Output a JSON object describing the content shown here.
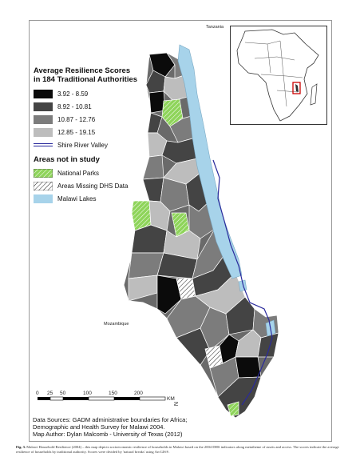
{
  "legend": {
    "title_line1": "Average Resilience Scores",
    "title_line2": "in 184 Traditional Authorities",
    "classes": [
      {
        "label": "3.92 - 8.59",
        "color": "#0b0b0b"
      },
      {
        "label": "8.92 - 10.81",
        "color": "#444444"
      },
      {
        "label": "10.87 - 12.76",
        "color": "#7c7c7c"
      },
      {
        "label": "12.85 - 19.15",
        "color": "#bdbdbd"
      }
    ],
    "river_label": "Shire River Valley",
    "not_in_study_title": "Areas not in study",
    "national_parks": "National Parks",
    "missing_dhs": "Areas Missing DHS Data",
    "lakes": "Malawi Lakes"
  },
  "labels": {
    "tanzania": "Tanzania",
    "mozambique": "Mozambique"
  },
  "scale": {
    "ticks": [
      "0",
      "25",
      "50",
      "100",
      "150",
      "200"
    ],
    "unit": "KM"
  },
  "sources": {
    "line1": "Data Sources: GADM administrative boundaries for Africa;",
    "line2": "Demographic and Health Survey for Malawi 2004.",
    "line3": "Map Author:  Dylan Malcomb - University of Texas (2012)"
  },
  "caption": {
    "fig": "Fig. 3.",
    "text": "Malawi Household Resilience (2004) – this map depicts socioeconomic resilience of households in Malawi based on the 2004 DHS indicators along metatheme of assets and access. The scores indicate the average resilience of households by traditional authority. Scores were divided by 'natural breaks' using ArcGIS®."
  },
  "colors": {
    "lake": "#a7d3ea",
    "park": "#8ed45a",
    "river": "#2a2a9c",
    "outline": "#ffffff",
    "inset_highlight": "#cc0000"
  }
}
